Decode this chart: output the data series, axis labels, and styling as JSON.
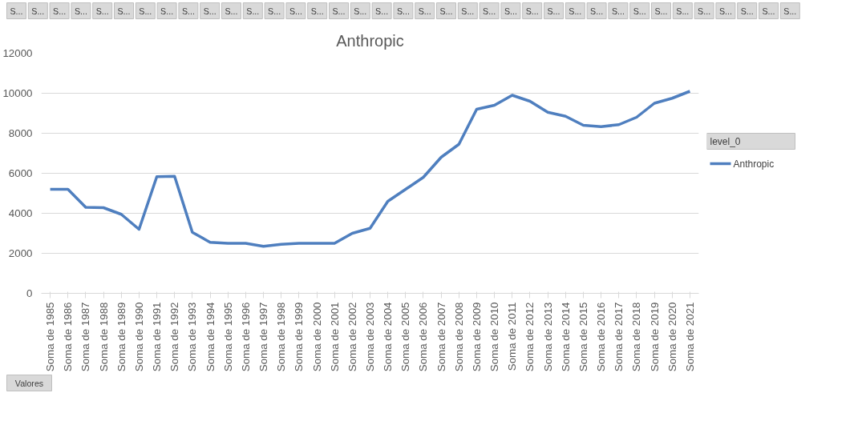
{
  "chart_data": {
    "type": "line",
    "title": "Anthropic",
    "legend_title": "level_0",
    "legend": "right",
    "grid": "y",
    "marker": "none",
    "line_style": "solid",
    "categories": [
      "Soma de 1985",
      "Soma de 1986",
      "Soma de 1987",
      "Soma de 1988",
      "Soma de 1989",
      "Soma de 1990",
      "Soma de 1991",
      "Soma de 1992",
      "Soma de 1993",
      "Soma de 1994",
      "Soma de 1995",
      "Soma de 1996",
      "Soma de 1997",
      "Soma de 1998",
      "Soma de 1999",
      "Soma de 2000",
      "Soma de 2001",
      "Soma de 2002",
      "Soma de 2003",
      "Soma de 2004",
      "Soma de 2005",
      "Soma de 2006",
      "Soma de 2007",
      "Soma de 2008",
      "Soma de 2009",
      "Soma de 2010",
      "Soma de 2011",
      "Soma de 2012",
      "Soma de 2013",
      "Soma de 2014",
      "Soma de 2015",
      "Soma de 2016",
      "Soma de 2017",
      "Soma de 2018",
      "Soma de 2019",
      "Soma de 2020",
      "Soma de 2021"
    ],
    "series": [
      {
        "name": "Anthropic",
        "color": "#4f7fbf",
        "values": [
          5200,
          5200,
          4300,
          4280,
          3950,
          3200,
          5830,
          5850,
          3050,
          2550,
          2500,
          2500,
          2350,
          2450,
          2500,
          2500,
          2500,
          3000,
          3250,
          4600,
          5200,
          5800,
          6800,
          7450,
          9200,
          9400,
          9900,
          9600,
          9050,
          8850,
          8400,
          8330,
          8430,
          8800,
          9500,
          9750,
          10100
        ]
      }
    ],
    "ylim": [
      0,
      12000
    ],
    "yticks": [
      0,
      2000,
      4000,
      6000,
      8000,
      10000,
      12000
    ],
    "annotations": [
      "S...",
      "S...",
      "S...",
      "S...",
      "S...",
      "S...",
      "S...",
      "S...",
      "S...",
      "S...",
      "S...",
      "S...",
      "S...",
      "S...",
      "S...",
      "S...",
      "S...",
      "S...",
      "S...",
      "S...",
      "S...",
      "S...",
      "S...",
      "S...",
      "S...",
      "S...",
      "S...",
      "S...",
      "S...",
      "S...",
      "S...",
      "S...",
      "S...",
      "S...",
      "S...",
      "S...",
      "S...",
      "Valores"
    ]
  }
}
